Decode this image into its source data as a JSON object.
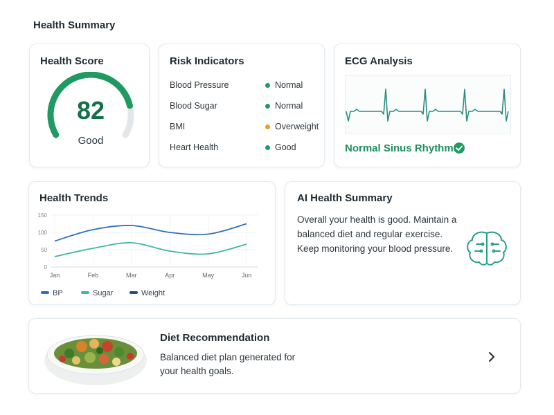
{
  "header": {
    "title": "Health Summary"
  },
  "health_score": {
    "title": "Health Score",
    "value": 82,
    "label": "Good",
    "range": [
      0,
      100
    ],
    "color": "#1f9a63",
    "track_color": "#e3e7ea"
  },
  "risk_indicators": {
    "title": "Risk Indicators",
    "items": [
      {
        "name": "Blood Pressure",
        "status": "Normal",
        "color": "#1f9a63"
      },
      {
        "name": "Blood Sugar",
        "status": "Normal",
        "color": "#1f9a63"
      },
      {
        "name": "BMI",
        "status": "Overweight",
        "color": "#f29a2e"
      },
      {
        "name": "Heart Health",
        "status": "Good",
        "color": "#1f9a63"
      }
    ]
  },
  "ecg": {
    "title": "ECG Analysis",
    "result": "Normal Sinus Rhythm"
  },
  "chart_data": {
    "type": "line",
    "title": "Health Trends",
    "categories": [
      "Jan",
      "Feb",
      "Mar",
      "Apr",
      "May",
      "Jun"
    ],
    "series": [
      {
        "name": "BP",
        "color": "#2f6fc0",
        "values": [
          75,
          108,
          120,
          100,
          95,
          125
        ]
      },
      {
        "name": "Sugar",
        "color": "#3fb8a0",
        "values": [
          30,
          54,
          70,
          46,
          38,
          66
        ]
      },
      {
        "name": "Weight",
        "color": "#1d4f91",
        "values": [
          null,
          null,
          null,
          null,
          null,
          null
        ]
      }
    ],
    "ylim": [
      0,
      150
    ],
    "yticks": [
      0,
      50,
      100,
      150
    ],
    "grid": true
  },
  "ai_summary": {
    "title": "AI Health Summary",
    "text": "Overall your health is good. Maintain a balanced diet and regular exercise. Keep monitoring your blood pressure."
  },
  "diet": {
    "title": "Diet Recommendation",
    "text": "Balanced diet plan generated for your health goals."
  }
}
